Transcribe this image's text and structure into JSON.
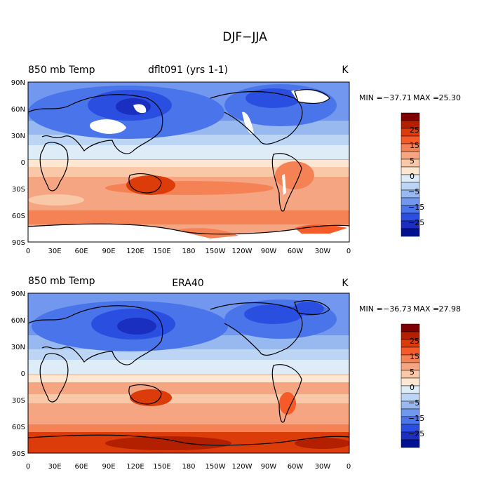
{
  "figure": {
    "title": "DJF−JJA"
  },
  "panels": [
    {
      "variable": "850 mb Temp",
      "case": "dflt091 (yrs 1-1)",
      "units": "K",
      "stats": {
        "min_label": "MIN =",
        "min": "−37.71",
        "max_label": "MAX =",
        "max": "25.30"
      },
      "missing_data": true,
      "variant": "model"
    },
    {
      "variable": "850 mb Temp",
      "case": "ERA40",
      "units": "K",
      "stats": {
        "min_label": "MIN =",
        "min": "−36.73",
        "max_label": "MAX =",
        "max": "27.98"
      },
      "missing_data": false,
      "variant": "obs"
    }
  ],
  "axes": {
    "lat_ticks": [
      "90N",
      "60N",
      "30N",
      "0",
      "30S",
      "60S",
      "90S"
    ],
    "lon_ticks": [
      "0",
      "30E",
      "60E",
      "90E",
      "120E",
      "150E",
      "180",
      "150W",
      "120W",
      "90W",
      "60W",
      "30W",
      "0"
    ]
  },
  "colorbar": {
    "labels": [
      "25",
      "15",
      "5",
      "0",
      "−5",
      "−15",
      "−25"
    ],
    "colors": [
      "#7f0000",
      "#b22000",
      "#dc3c0a",
      "#f65a28",
      "#f58255",
      "#f6a582",
      "#f8c8a8",
      "#fde6d2",
      "#deecf8",
      "#bcd5f5",
      "#98b8f0",
      "#7197ee",
      "#4a74ea",
      "#2a4fe0",
      "#1a2fc0",
      "#001090"
    ]
  }
}
